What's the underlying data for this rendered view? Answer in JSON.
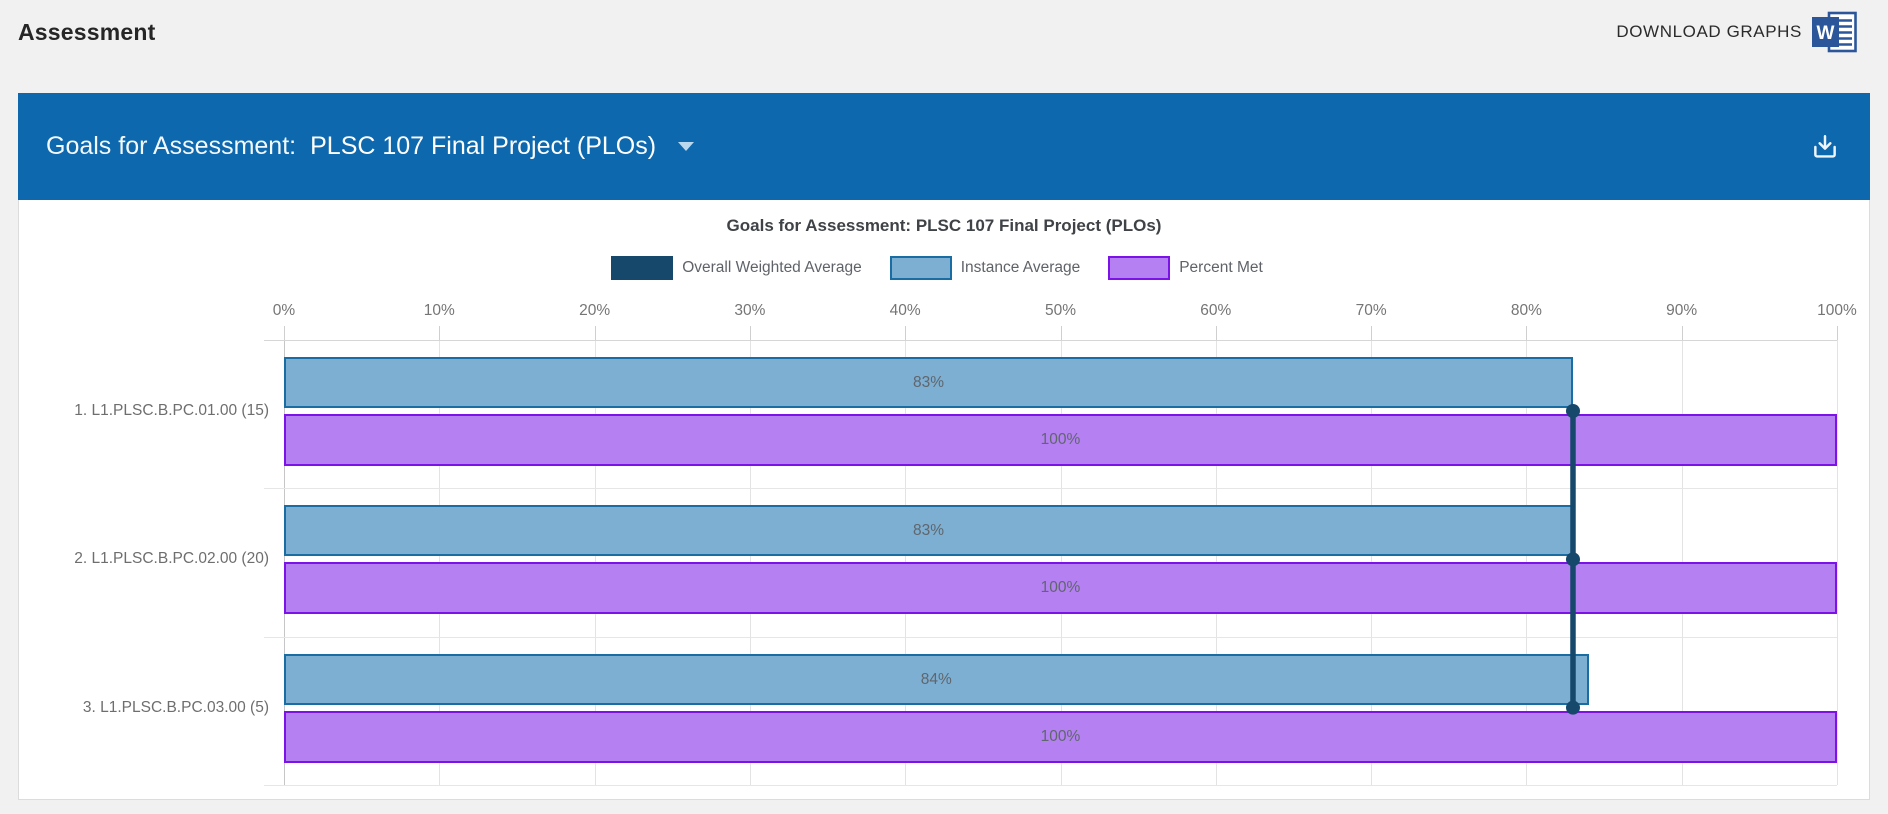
{
  "header": {
    "title": "Assessment",
    "download_label": "DOWNLOAD GRAPHS"
  },
  "banner": {
    "label": "Goals for Assessment:",
    "selection": "PLSC 107 Final Project (PLOs)",
    "bg": "#0d68ae"
  },
  "chart_data": {
    "type": "bar",
    "orientation": "horizontal-grouped",
    "title": "Goals for Assessment: PLSC 107 Final Project (PLOs)",
    "categories": [
      "1. L1.PLSC.B.PC.01.00 (15)",
      "2. L1.PLSC.B.PC.02.00 (20)",
      "3. L1.PLSC.B.PC.03.00 (5)"
    ],
    "series": [
      {
        "name": "Overall Weighted Average",
        "style": "line-marker",
        "color": "#16486b",
        "values": [
          83,
          83,
          83
        ]
      },
      {
        "name": "Instance Average",
        "style": "bar",
        "fill": "#7dafd3",
        "border": "#1a6da3",
        "values": [
          83,
          83,
          84
        ],
        "labels": [
          "83%",
          "83%",
          "84%"
        ]
      },
      {
        "name": "Percent Met",
        "style": "bar",
        "fill": "#b480f2",
        "border": "#7d12e8",
        "values": [
          100,
          100,
          100
        ],
        "labels": [
          "100%",
          "100%",
          "100%"
        ]
      }
    ],
    "x_tick_values": [
      0,
      10,
      20,
      30,
      40,
      50,
      60,
      70,
      80,
      90,
      100
    ],
    "x_tick_labels": [
      "0%",
      "10%",
      "20%",
      "30%",
      "40%",
      "50%",
      "60%",
      "70%",
      "80%",
      "90%",
      "100%"
    ],
    "xlim": [
      0,
      100
    ],
    "grid": true,
    "legend_position": "top-center"
  }
}
